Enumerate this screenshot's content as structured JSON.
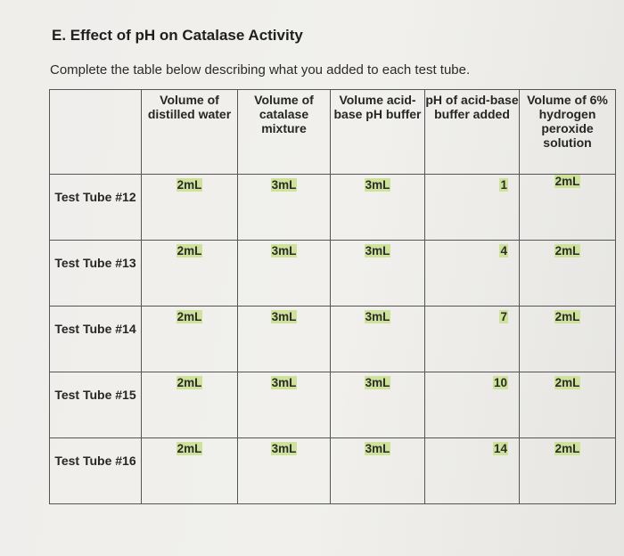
{
  "heading": "E. Effect of pH on Catalase Activity",
  "instructions": "Complete the table below describing what you added to each test tube.",
  "table": {
    "headers": [
      "",
      "Volume of distilled water",
      "Volume of catalase mixture",
      "Volume acid-base pH buffer",
      "pH of acid-base buffer added",
      "Volume of 6% hydrogen peroxide solution"
    ],
    "rows": [
      {
        "label": "Test Tube #12",
        "water": "2mL",
        "catalase": "3mL",
        "buffer": "3mL",
        "ph": "1",
        "peroxide": "2mL"
      },
      {
        "label": "Test Tube #13",
        "water": "2mL",
        "catalase": "3mL",
        "buffer": "3mL",
        "ph": "4",
        "peroxide": "2mL"
      },
      {
        "label": "Test Tube #14",
        "water": "2mL",
        "catalase": "3mL",
        "buffer": "3mL",
        "ph": "7",
        "peroxide": "2mL"
      },
      {
        "label": "Test Tube #15",
        "water": "2mL",
        "catalase": "3mL",
        "buffer": "3mL",
        "ph": "10",
        "peroxide": "2mL"
      },
      {
        "label": "Test Tube #16",
        "water": "2mL",
        "catalase": "3mL",
        "buffer": "3mL",
        "ph": "14",
        "peroxide": "2mL"
      }
    ]
  },
  "colors": {
    "highlight": "#cfe29a",
    "grid": "#555555",
    "paper": "#efeeeb"
  }
}
